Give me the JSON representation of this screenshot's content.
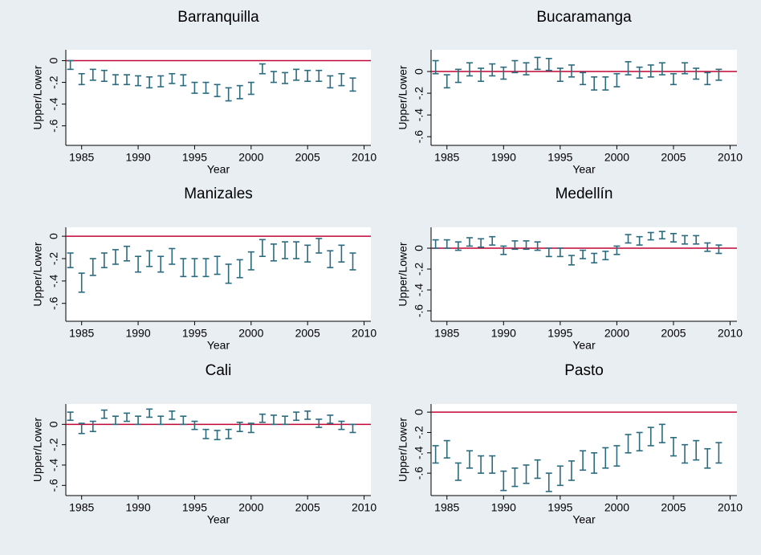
{
  "chart_data": [
    {
      "type": "errorbar",
      "title": "Barranquilla",
      "xlabel": "Year",
      "ylabel": "Upper/Lower",
      "color": "#2b6b7f",
      "hline": 0,
      "hline_color": "#c10534",
      "x": [
        1984,
        1985,
        1986,
        1987,
        1988,
        1989,
        1990,
        1991,
        1992,
        1993,
        1994,
        1995,
        1996,
        1997,
        1998,
        1999,
        2000,
        2001,
        2002,
        2003,
        2004,
        2005,
        2006,
        2007,
        2008,
        2009
      ],
      "lower": [
        -0.08,
        -0.22,
        -0.18,
        -0.19,
        -0.22,
        -0.22,
        -0.23,
        -0.25,
        -0.24,
        -0.21,
        -0.23,
        -0.3,
        -0.3,
        -0.33,
        -0.37,
        -0.35,
        -0.31,
        -0.12,
        -0.2,
        -0.21,
        -0.18,
        -0.19,
        -0.19,
        -0.25,
        -0.23,
        -0.28
      ],
      "upper": [
        0.0,
        -0.12,
        -0.08,
        -0.09,
        -0.13,
        -0.13,
        -0.14,
        -0.15,
        -0.14,
        -0.12,
        -0.13,
        -0.2,
        -0.2,
        -0.22,
        -0.25,
        -0.23,
        -0.2,
        -0.03,
        -0.1,
        -0.11,
        -0.08,
        -0.09,
        -0.09,
        -0.14,
        -0.12,
        -0.16
      ],
      "xlim": [
        1983.6,
        2010.6
      ],
      "xticks": [
        1985,
        1990,
        1995,
        2000,
        2005,
        2010
      ],
      "ylim": [
        -0.78,
        0.1
      ],
      "yticks": [
        0,
        {
          "value": -0.2,
          "label": "-.2"
        },
        {
          "value": -0.4,
          "label": "-.4"
        },
        {
          "value": -0.6,
          "label": "-.6"
        }
      ]
    },
    {
      "type": "errorbar",
      "title": "Bucaramanga",
      "xlabel": "Year",
      "ylabel": "Upper/Lower",
      "color": "#2b6b7f",
      "hline": 0,
      "hline_color": "#c10534",
      "x": [
        1984,
        1985,
        1986,
        1987,
        1988,
        1989,
        1990,
        1991,
        1992,
        1993,
        1994,
        1995,
        1996,
        1997,
        1998,
        1999,
        2000,
        2001,
        2002,
        2003,
        2004,
        2005,
        2006,
        2007,
        2008,
        2009
      ],
      "lower": [
        -0.02,
        -0.15,
        -0.1,
        -0.04,
        -0.09,
        -0.04,
        -0.07,
        -0.01,
        -0.03,
        0.02,
        0.01,
        -0.09,
        -0.05,
        -0.12,
        -0.17,
        -0.17,
        -0.14,
        -0.03,
        -0.06,
        -0.05,
        -0.03,
        -0.12,
        -0.02,
        -0.07,
        -0.12,
        -0.08
      ],
      "upper": [
        0.1,
        -0.03,
        0.02,
        0.08,
        0.03,
        0.07,
        0.04,
        0.1,
        0.08,
        0.13,
        0.12,
        0.03,
        0.06,
        -0.01,
        -0.05,
        -0.05,
        -0.02,
        0.09,
        0.04,
        0.06,
        0.08,
        -0.02,
        0.08,
        0.03,
        -0.01,
        0.02
      ],
      "xlim": [
        1983.6,
        2010.6
      ],
      "xticks": [
        1985,
        1990,
        1995,
        2000,
        2005,
        2010
      ],
      "ylim": [
        -0.68,
        0.2
      ],
      "yticks": [
        0,
        {
          "value": -0.2,
          "label": "-.2"
        },
        {
          "value": -0.4,
          "label": "-.4"
        },
        {
          "value": -0.6,
          "label": "-.6"
        }
      ]
    },
    {
      "type": "errorbar",
      "title": "Manizales",
      "xlabel": "Year",
      "ylabel": "Upper/Lower",
      "color": "#2b6b7f",
      "hline": 0,
      "hline_color": "#c10534",
      "x": [
        1984,
        1985,
        1986,
        1987,
        1988,
        1989,
        1990,
        1991,
        1992,
        1993,
        1994,
        1995,
        1996,
        1997,
        1998,
        1999,
        2000,
        2001,
        2002,
        2003,
        2004,
        2005,
        2006,
        2007,
        2008,
        2009
      ],
      "lower": [
        -0.28,
        -0.5,
        -0.35,
        -0.28,
        -0.25,
        -0.22,
        -0.32,
        -0.27,
        -0.32,
        -0.25,
        -0.36,
        -0.36,
        -0.36,
        -0.34,
        -0.42,
        -0.37,
        -0.3,
        -0.18,
        -0.22,
        -0.2,
        -0.2,
        -0.23,
        -0.15,
        -0.28,
        -0.23,
        -0.3
      ],
      "upper": [
        -0.15,
        -0.33,
        -0.2,
        -0.15,
        -0.12,
        -0.09,
        -0.18,
        -0.13,
        -0.18,
        -0.11,
        -0.2,
        -0.2,
        -0.2,
        -0.18,
        -0.25,
        -0.21,
        -0.14,
        -0.03,
        -0.07,
        -0.05,
        -0.05,
        -0.08,
        -0.02,
        -0.13,
        -0.08,
        -0.15
      ],
      "xlim": [
        1983.6,
        2010.6
      ],
      "xticks": [
        1985,
        1990,
        1995,
        2000,
        2005,
        2010
      ],
      "ylim": [
        -0.76,
        0.08
      ],
      "yticks": [
        0,
        {
          "value": -0.2,
          "label": "-.2"
        },
        {
          "value": -0.4,
          "label": "-.4"
        },
        {
          "value": -0.6,
          "label": "-.6"
        }
      ]
    },
    {
      "type": "errorbar",
      "title": "Medellín",
      "xlabel": "Year",
      "ylabel": "Upper/Lower",
      "color": "#2b6b7f",
      "hline": 0,
      "hline_color": "#c10534",
      "x": [
        1984,
        1985,
        1986,
        1987,
        1988,
        1989,
        1990,
        1991,
        1992,
        1993,
        1994,
        1995,
        1996,
        1997,
        1998,
        1999,
        2000,
        2001,
        2002,
        2003,
        2004,
        2005,
        2006,
        2007,
        2008,
        2009
      ],
      "lower": [
        0.0,
        0.0,
        -0.02,
        0.02,
        0.01,
        0.03,
        -0.06,
        -0.01,
        -0.01,
        -0.02,
        -0.08,
        -0.08,
        -0.16,
        -0.1,
        -0.14,
        -0.11,
        -0.06,
        0.05,
        0.03,
        0.08,
        0.09,
        0.06,
        0.04,
        0.04,
        -0.03,
        -0.05
      ],
      "upper": [
        0.08,
        0.08,
        0.06,
        0.1,
        0.09,
        0.11,
        0.02,
        0.07,
        0.07,
        0.06,
        0.0,
        0.0,
        -0.07,
        -0.02,
        -0.05,
        -0.03,
        0.02,
        0.13,
        0.11,
        0.15,
        0.16,
        0.14,
        0.12,
        0.12,
        0.05,
        0.03
      ],
      "xlim": [
        1983.6,
        2010.6
      ],
      "xticks": [
        1985,
        1990,
        1995,
        2000,
        2005,
        2010
      ],
      "ylim": [
        -0.7,
        0.2
      ],
      "yticks": [
        0,
        {
          "value": -0.2,
          "label": "-.2"
        },
        {
          "value": -0.4,
          "label": "-.4"
        },
        {
          "value": -0.6,
          "label": "-.6"
        }
      ]
    },
    {
      "type": "errorbar",
      "title": "Cali",
      "xlabel": "Year",
      "ylabel": "Upper/Lower",
      "color": "#2b6b7f",
      "hline": 0,
      "hline_color": "#c10534",
      "x": [
        1984,
        1985,
        1986,
        1987,
        1988,
        1989,
        1990,
        1991,
        1992,
        1993,
        1994,
        1995,
        1996,
        1997,
        1998,
        1999,
        2000,
        2001,
        2002,
        2003,
        2004,
        2005,
        2006,
        2007,
        2008,
        2009
      ],
      "lower": [
        0.04,
        -0.09,
        -0.07,
        0.06,
        0.0,
        0.03,
        0.0,
        0.07,
        0.0,
        0.05,
        0.0,
        -0.05,
        -0.14,
        -0.15,
        -0.14,
        -0.07,
        -0.08,
        0.02,
        0.0,
        0.0,
        0.04,
        0.05,
        -0.03,
        0.01,
        -0.05,
        -0.08
      ],
      "upper": [
        0.12,
        0.01,
        0.03,
        0.14,
        0.08,
        0.11,
        0.08,
        0.15,
        0.08,
        0.13,
        0.08,
        0.03,
        -0.05,
        -0.06,
        -0.05,
        0.02,
        0.01,
        0.1,
        0.09,
        0.08,
        0.12,
        0.13,
        0.05,
        0.09,
        0.03,
        0.0
      ],
      "xlim": [
        1983.6,
        2010.6
      ],
      "xticks": [
        1985,
        1990,
        1995,
        2000,
        2005,
        2010
      ],
      "ylim": [
        -0.7,
        0.2
      ],
      "yticks": [
        0,
        {
          "value": -0.2,
          "label": "-.2"
        },
        {
          "value": -0.4,
          "label": "-.4"
        },
        {
          "value": -0.6,
          "label": "-.6"
        }
      ]
    },
    {
      "type": "errorbar",
      "title": "Pasto",
      "xlabel": "Year",
      "ylabel": "Upper/Lower",
      "color": "#2b6b7f",
      "hline": 0,
      "hline_color": "#c10534",
      "x": [
        1984,
        1985,
        1986,
        1987,
        1988,
        1989,
        1990,
        1991,
        1992,
        1993,
        1994,
        1995,
        1996,
        1997,
        1998,
        1999,
        2000,
        2001,
        2002,
        2003,
        2004,
        2005,
        2006,
        2007,
        2008,
        2009
      ],
      "lower": [
        -0.5,
        -0.45,
        -0.67,
        -0.55,
        -0.6,
        -0.6,
        -0.77,
        -0.73,
        -0.7,
        -0.65,
        -0.78,
        -0.72,
        -0.67,
        -0.57,
        -0.6,
        -0.55,
        -0.53,
        -0.4,
        -0.38,
        -0.33,
        -0.3,
        -0.43,
        -0.5,
        -0.47,
        -0.55,
        -0.5
      ],
      "upper": [
        -0.33,
        -0.28,
        -0.5,
        -0.38,
        -0.43,
        -0.43,
        -0.58,
        -0.55,
        -0.52,
        -0.47,
        -0.6,
        -0.53,
        -0.48,
        -0.38,
        -0.4,
        -0.35,
        -0.33,
        -0.22,
        -0.2,
        -0.15,
        -0.12,
        -0.25,
        -0.32,
        -0.28,
        -0.36,
        -0.3
      ],
      "xlim": [
        1983.6,
        2010.6
      ],
      "xticks": [
        1985,
        1990,
        1995,
        2000,
        2005,
        2010
      ],
      "ylim": [
        -0.82,
        0.08
      ],
      "yticks": [
        0,
        {
          "value": -0.2,
          "label": "-.2"
        },
        {
          "value": -0.4,
          "label": "-.4"
        },
        {
          "value": -0.6,
          "label": "-.6"
        }
      ]
    }
  ]
}
